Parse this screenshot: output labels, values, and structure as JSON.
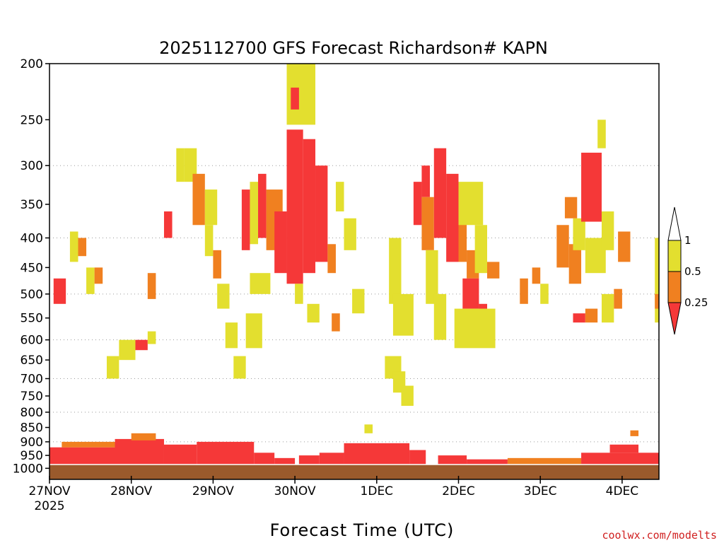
{
  "chart_data": {
    "type": "heatmap",
    "title": "2025112700 GFS Forecast Richardson# KAPN",
    "xlabel": "Forecast Time (UTC)",
    "ylabel": "",
    "x_ticks": [
      {
        "label": "27NOV",
        "day": 0
      },
      {
        "label": "28NOV",
        "day": 1
      },
      {
        "label": "29NOV",
        "day": 2
      },
      {
        "label": "30NOV",
        "day": 3
      },
      {
        "label": "1DEC",
        "day": 4
      },
      {
        "label": "2DEC",
        "day": 5
      },
      {
        "label": "3DEC",
        "day": 6
      },
      {
        "label": "4DEC",
        "day": 7
      }
    ],
    "x_year_label": "2025",
    "xlim_days": [
      0,
      7.5
    ],
    "y_axis_pressure_hPa": {
      "ticks": [
        200,
        250,
        300,
        350,
        400,
        450,
        500,
        550,
        600,
        650,
        700,
        750,
        800,
        850,
        900,
        950,
        1000
      ],
      "ylim": [
        200,
        1000
      ],
      "scale": "log",
      "gridlines": [
        300,
        400,
        500,
        600,
        700,
        800,
        900,
        1000
      ]
    },
    "colorbar": {
      "labels": [
        "1",
        "0.5",
        "0.25"
      ],
      "bins": [
        {
          "range": "0.5-1",
          "color": "#e3df2f"
        },
        {
          "range": "0.25-0.5",
          "color": "#f08020"
        },
        {
          "range": "<0.25",
          "color": "#f53838"
        }
      ],
      "over_color": "#ffffff",
      "under_color": "#f53838"
    },
    "colors": {
      "yellow": "#e3df2f",
      "orange": "#f08020",
      "red": "#f53838",
      "ground": "#9a5a2c",
      "grid": "#9a9a9a"
    },
    "regions": [
      {
        "day_start": 0.0,
        "day_end": 7.5,
        "p_top": 985,
        "p_bottom": 1000,
        "category": "ground"
      },
      {
        "day_start": 0.0,
        "day_end": 0.95,
        "p_top": 920,
        "p_bottom": 985,
        "category": "red"
      },
      {
        "day_start": 0.15,
        "day_end": 0.9,
        "p_top": 900,
        "p_bottom": 920,
        "category": "orange"
      },
      {
        "day_start": 0.8,
        "day_end": 1.4,
        "p_top": 890,
        "p_bottom": 985,
        "category": "red"
      },
      {
        "day_start": 1.0,
        "day_end": 1.3,
        "p_top": 870,
        "p_bottom": 895,
        "category": "orange"
      },
      {
        "day_start": 1.4,
        "day_end": 1.8,
        "p_top": 910,
        "p_bottom": 985,
        "category": "red"
      },
      {
        "day_start": 1.8,
        "day_end": 2.5,
        "p_top": 900,
        "p_bottom": 985,
        "category": "red"
      },
      {
        "day_start": 2.5,
        "day_end": 2.75,
        "p_top": 940,
        "p_bottom": 985,
        "category": "red"
      },
      {
        "day_start": 2.75,
        "day_end": 3.0,
        "p_top": 960,
        "p_bottom": 985,
        "category": "red"
      },
      {
        "day_start": 3.05,
        "day_end": 3.3,
        "p_top": 950,
        "p_bottom": 985,
        "category": "red"
      },
      {
        "day_start": 3.3,
        "day_end": 3.6,
        "p_top": 940,
        "p_bottom": 985,
        "category": "red"
      },
      {
        "day_start": 3.6,
        "day_end": 4.4,
        "p_top": 905,
        "p_bottom": 985,
        "category": "red"
      },
      {
        "day_start": 4.4,
        "day_end": 4.6,
        "p_top": 930,
        "p_bottom": 985,
        "category": "red"
      },
      {
        "day_start": 4.75,
        "day_end": 5.1,
        "p_top": 950,
        "p_bottom": 985,
        "category": "red"
      },
      {
        "day_start": 5.1,
        "day_end": 5.6,
        "p_top": 965,
        "p_bottom": 985,
        "category": "red"
      },
      {
        "day_start": 5.6,
        "day_end": 6.5,
        "p_top": 960,
        "p_bottom": 985,
        "category": "orange"
      },
      {
        "day_start": 6.5,
        "day_end": 7.5,
        "p_top": 940,
        "p_bottom": 985,
        "category": "red"
      },
      {
        "day_start": 6.85,
        "day_end": 7.2,
        "p_top": 910,
        "p_bottom": 940,
        "category": "red"
      },
      {
        "day_start": 0.05,
        "day_end": 0.2,
        "p_top": 470,
        "p_bottom": 520,
        "category": "red"
      },
      {
        "day_start": 0.25,
        "day_end": 0.35,
        "p_top": 390,
        "p_bottom": 440,
        "category": "yellow"
      },
      {
        "day_start": 0.35,
        "day_end": 0.45,
        "p_top": 400,
        "p_bottom": 430,
        "category": "orange"
      },
      {
        "day_start": 0.45,
        "day_end": 0.55,
        "p_top": 450,
        "p_bottom": 500,
        "category": "yellow"
      },
      {
        "day_start": 0.55,
        "day_end": 0.65,
        "p_top": 450,
        "p_bottom": 480,
        "category": "orange"
      },
      {
        "day_start": 0.7,
        "day_end": 0.85,
        "p_top": 640,
        "p_bottom": 700,
        "category": "yellow"
      },
      {
        "day_start": 0.85,
        "day_end": 1.05,
        "p_top": 600,
        "p_bottom": 650,
        "category": "yellow"
      },
      {
        "day_start": 1.05,
        "day_end": 1.2,
        "p_top": 600,
        "p_bottom": 625,
        "category": "red"
      },
      {
        "day_start": 1.2,
        "day_end": 1.3,
        "p_top": 580,
        "p_bottom": 610,
        "category": "yellow"
      },
      {
        "day_start": 1.2,
        "day_end": 1.3,
        "p_top": 460,
        "p_bottom": 510,
        "category": "orange"
      },
      {
        "day_start": 1.55,
        "day_end": 1.65,
        "p_top": 280,
        "p_bottom": 320,
        "category": "yellow"
      },
      {
        "day_start": 1.65,
        "day_end": 1.8,
        "p_top": 280,
        "p_bottom": 320,
        "category": "yellow"
      },
      {
        "day_start": 1.75,
        "day_end": 1.9,
        "p_top": 310,
        "p_bottom": 380,
        "category": "orange"
      },
      {
        "day_start": 1.9,
        "day_end": 2.0,
        "p_top": 380,
        "p_bottom": 430,
        "category": "yellow"
      },
      {
        "day_start": 2.0,
        "day_end": 2.1,
        "p_top": 420,
        "p_bottom": 470,
        "category": "orange"
      },
      {
        "day_start": 2.05,
        "day_end": 2.2,
        "p_top": 480,
        "p_bottom": 530,
        "category": "yellow"
      },
      {
        "day_start": 2.15,
        "day_end": 2.3,
        "p_top": 560,
        "p_bottom": 620,
        "category": "yellow"
      },
      {
        "day_start": 2.35,
        "day_end": 2.45,
        "p_top": 330,
        "p_bottom": 420,
        "category": "red"
      },
      {
        "day_start": 2.45,
        "day_end": 2.55,
        "p_top": 320,
        "p_bottom": 410,
        "category": "yellow"
      },
      {
        "day_start": 2.55,
        "day_end": 2.65,
        "p_top": 310,
        "p_bottom": 400,
        "category": "red"
      },
      {
        "day_start": 2.65,
        "day_end": 2.85,
        "p_top": 330,
        "p_bottom": 420,
        "category": "orange"
      },
      {
        "day_start": 2.45,
        "day_end": 2.7,
        "p_top": 460,
        "p_bottom": 500,
        "category": "yellow"
      },
      {
        "day_start": 2.75,
        "day_end": 2.9,
        "p_top": 360,
        "p_bottom": 460,
        "category": "red"
      },
      {
        "day_start": 2.9,
        "day_end": 3.1,
        "p_top": 260,
        "p_bottom": 480,
        "category": "red"
      },
      {
        "day_start": 3.1,
        "day_end": 3.25,
        "p_top": 270,
        "p_bottom": 460,
        "category": "red"
      },
      {
        "day_start": 3.25,
        "day_end": 3.4,
        "p_top": 300,
        "p_bottom": 440,
        "category": "red"
      },
      {
        "day_start": 3.4,
        "day_end": 3.5,
        "p_top": 410,
        "p_bottom": 460,
        "category": "orange"
      },
      {
        "day_start": 3.45,
        "day_end": 3.55,
        "p_top": 540,
        "p_bottom": 580,
        "category": "orange"
      },
      {
        "day_start": 2.9,
        "day_end": 3.25,
        "p_top": 200,
        "p_bottom": 255,
        "category": "yellow"
      },
      {
        "day_start": 2.95,
        "day_end": 3.05,
        "p_top": 220,
        "p_bottom": 240,
        "category": "red"
      },
      {
        "day_start": 3.0,
        "day_end": 3.1,
        "p_top": 480,
        "p_bottom": 520,
        "category": "yellow"
      },
      {
        "day_start": 3.15,
        "day_end": 3.3,
        "p_top": 520,
        "p_bottom": 560,
        "category": "yellow"
      },
      {
        "day_start": 4.15,
        "day_end": 4.3,
        "p_top": 400,
        "p_bottom": 520,
        "category": "yellow"
      },
      {
        "day_start": 4.1,
        "day_end": 4.3,
        "p_top": 640,
        "p_bottom": 700,
        "category": "yellow"
      },
      {
        "day_start": 4.2,
        "day_end": 4.35,
        "p_top": 680,
        "p_bottom": 740,
        "category": "yellow"
      },
      {
        "day_start": 4.3,
        "day_end": 4.45,
        "p_top": 720,
        "p_bottom": 780,
        "category": "yellow"
      },
      {
        "day_start": 4.2,
        "day_end": 4.45,
        "p_top": 500,
        "p_bottom": 590,
        "category": "yellow"
      },
      {
        "day_start": 4.45,
        "day_end": 4.55,
        "p_top": 320,
        "p_bottom": 380,
        "category": "red"
      },
      {
        "day_start": 4.55,
        "day_end": 4.65,
        "p_top": 300,
        "p_bottom": 340,
        "category": "red"
      },
      {
        "day_start": 4.55,
        "day_end": 4.7,
        "p_top": 340,
        "p_bottom": 420,
        "category": "orange"
      },
      {
        "day_start": 4.7,
        "day_end": 4.85,
        "p_top": 280,
        "p_bottom": 400,
        "category": "red"
      },
      {
        "day_start": 4.85,
        "day_end": 5.0,
        "p_top": 310,
        "p_bottom": 440,
        "category": "red"
      },
      {
        "day_start": 4.6,
        "day_end": 4.75,
        "p_top": 420,
        "p_bottom": 520,
        "category": "yellow"
      },
      {
        "day_start": 4.7,
        "day_end": 4.85,
        "p_top": 500,
        "p_bottom": 600,
        "category": "yellow"
      },
      {
        "day_start": 5.0,
        "day_end": 5.1,
        "p_top": 370,
        "p_bottom": 440,
        "category": "orange"
      },
      {
        "day_start": 5.1,
        "day_end": 5.25,
        "p_top": 420,
        "p_bottom": 470,
        "category": "orange"
      },
      {
        "day_start": 5.05,
        "day_end": 5.25,
        "p_top": 470,
        "p_bottom": 530,
        "category": "red"
      },
      {
        "day_start": 5.25,
        "day_end": 5.35,
        "p_top": 520,
        "p_bottom": 560,
        "category": "red"
      },
      {
        "day_start": 4.95,
        "day_end": 5.45,
        "p_top": 530,
        "p_bottom": 620,
        "category": "yellow"
      },
      {
        "day_start": 5.0,
        "day_end": 5.3,
        "p_top": 320,
        "p_bottom": 380,
        "category": "yellow"
      },
      {
        "day_start": 5.2,
        "day_end": 5.35,
        "p_top": 380,
        "p_bottom": 460,
        "category": "yellow"
      },
      {
        "day_start": 5.35,
        "day_end": 5.5,
        "p_top": 440,
        "p_bottom": 470,
        "category": "orange"
      },
      {
        "day_start": 5.75,
        "day_end": 5.85,
        "p_top": 470,
        "p_bottom": 520,
        "category": "orange"
      },
      {
        "day_start": 5.9,
        "day_end": 6.0,
        "p_top": 450,
        "p_bottom": 480,
        "category": "orange"
      },
      {
        "day_start": 6.0,
        "day_end": 6.1,
        "p_top": 480,
        "p_bottom": 520,
        "category": "yellow"
      },
      {
        "day_start": 6.2,
        "day_end": 6.35,
        "p_top": 380,
        "p_bottom": 450,
        "category": "orange"
      },
      {
        "day_start": 6.35,
        "day_end": 6.5,
        "p_top": 410,
        "p_bottom": 480,
        "category": "orange"
      },
      {
        "day_start": 6.4,
        "day_end": 6.55,
        "p_top": 370,
        "p_bottom": 420,
        "category": "yellow"
      },
      {
        "day_start": 6.3,
        "day_end": 6.45,
        "p_top": 340,
        "p_bottom": 370,
        "category": "orange"
      },
      {
        "day_start": 6.5,
        "day_end": 6.75,
        "p_top": 285,
        "p_bottom": 375,
        "category": "red"
      },
      {
        "day_start": 6.55,
        "day_end": 6.8,
        "p_top": 400,
        "p_bottom": 460,
        "category": "yellow"
      },
      {
        "day_start": 6.75,
        "day_end": 6.9,
        "p_top": 360,
        "p_bottom": 420,
        "category": "yellow"
      },
      {
        "day_start": 6.4,
        "day_end": 6.55,
        "p_top": 540,
        "p_bottom": 560,
        "category": "red"
      },
      {
        "day_start": 6.55,
        "day_end": 6.7,
        "p_top": 530,
        "p_bottom": 560,
        "category": "orange"
      },
      {
        "day_start": 6.75,
        "day_end": 6.9,
        "p_top": 500,
        "p_bottom": 560,
        "category": "yellow"
      },
      {
        "day_start": 6.9,
        "day_end": 7.0,
        "p_top": 490,
        "p_bottom": 530,
        "category": "orange"
      },
      {
        "day_start": 6.95,
        "day_end": 7.1,
        "p_top": 390,
        "p_bottom": 440,
        "category": "orange"
      },
      {
        "day_start": 6.7,
        "day_end": 6.8,
        "p_top": 250,
        "p_bottom": 280,
        "category": "yellow"
      },
      {
        "day_start": 7.4,
        "day_end": 7.5,
        "p_top": 400,
        "p_bottom": 560,
        "category": "yellow"
      },
      {
        "day_start": 7.4,
        "day_end": 7.5,
        "p_top": 500,
        "p_bottom": 530,
        "category": "orange"
      },
      {
        "day_start": 7.1,
        "day_end": 7.2,
        "p_top": 860,
        "p_bottom": 880,
        "category": "orange"
      },
      {
        "day_start": 3.85,
        "day_end": 3.95,
        "p_top": 840,
        "p_bottom": 870,
        "category": "yellow"
      },
      {
        "day_start": 3.7,
        "day_end": 3.85,
        "p_top": 490,
        "p_bottom": 540,
        "category": "yellow"
      },
      {
        "day_start": 3.6,
        "day_end": 3.75,
        "p_top": 370,
        "p_bottom": 420,
        "category": "yellow"
      },
      {
        "day_start": 3.5,
        "day_end": 3.6,
        "p_top": 320,
        "p_bottom": 360,
        "category": "yellow"
      },
      {
        "day_start": 2.25,
        "day_end": 2.4,
        "p_top": 640,
        "p_bottom": 700,
        "category": "yellow"
      },
      {
        "day_start": 2.4,
        "day_end": 2.6,
        "p_top": 540,
        "p_bottom": 620,
        "category": "yellow"
      },
      {
        "day_start": 1.9,
        "day_end": 2.05,
        "p_top": 330,
        "p_bottom": 380,
        "category": "yellow"
      },
      {
        "day_start": 1.4,
        "day_end": 1.5,
        "p_top": 360,
        "p_bottom": 400,
        "category": "red"
      }
    ]
  }
}
